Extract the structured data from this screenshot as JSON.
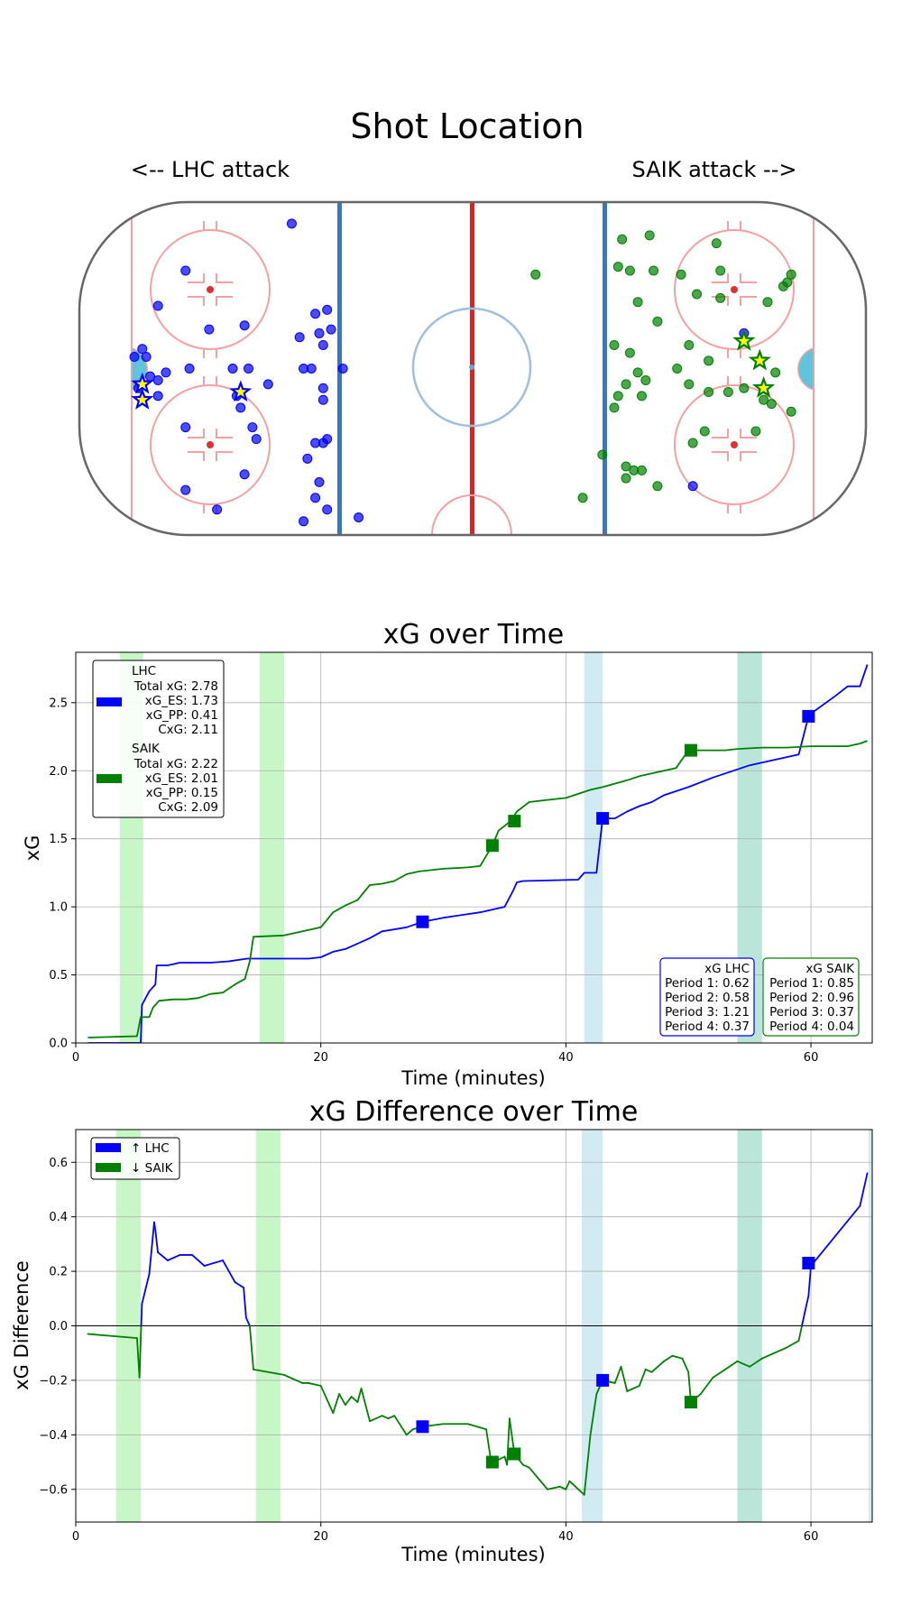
{
  "colors": {
    "lhc": "#0000ff",
    "saik": "#008000",
    "pp_light": "#90ee90",
    "pp_dark": "#add8e6"
  },
  "chart_data": [
    {
      "type": "scatter",
      "title": "Shot Location",
      "left_label": "<-- LHC attack",
      "right_label": "SAIK attack -->",
      "xlim": [
        -100,
        100
      ],
      "ylim": [
        -42.5,
        42.5
      ],
      "series": [
        {
          "name": "LHC shots",
          "color": "blue",
          "points": [
            [
              -46,
              37
            ],
            [
              -73,
              25
            ],
            [
              -80,
              16
            ],
            [
              -67,
              10
            ],
            [
              -58,
              11
            ],
            [
              -84,
              5
            ],
            [
              -86,
              3
            ],
            [
              -83,
              3
            ],
            [
              -78,
              -1
            ],
            [
              -72,
              0
            ],
            [
              -57,
              0
            ],
            [
              -61,
              0
            ],
            [
              -82,
              -2
            ],
            [
              -80,
              -3
            ],
            [
              -85,
              -5
            ],
            [
              -80,
              -7
            ],
            [
              -60,
              -7
            ],
            [
              -59,
              -10
            ],
            [
              -52,
              -4
            ],
            [
              -40,
              14
            ],
            [
              -37,
              15
            ],
            [
              -36,
              10
            ],
            [
              -39,
              9
            ],
            [
              -38,
              6
            ],
            [
              -44,
              8
            ],
            [
              -43,
              0
            ],
            [
              -41,
              0
            ],
            [
              -33,
              0
            ],
            [
              -38,
              -5
            ],
            [
              -38,
              -8
            ],
            [
              -73,
              -15
            ],
            [
              -56,
              -15
            ],
            [
              -55,
              -18
            ],
            [
              -37,
              -18
            ],
            [
              -40,
              -19
            ],
            [
              -38,
              -19
            ],
            [
              -42,
              -23
            ],
            [
              -58,
              -27
            ],
            [
              -39,
              -29
            ],
            [
              -73,
              -31
            ],
            [
              -40,
              -33
            ],
            [
              -65,
              -36
            ],
            [
              -43,
              -39
            ],
            [
              -37,
              -36
            ],
            [
              -29,
              -38
            ],
            [
              56,
              -30
            ],
            [
              69,
              9
            ]
          ]
        },
        {
          "name": "SAIK shots",
          "color": "green",
          "points": [
            [
              16,
              24
            ],
            [
              38,
              33
            ],
            [
              45,
              34
            ],
            [
              62,
              32
            ],
            [
              37,
              26
            ],
            [
              40,
              25
            ],
            [
              46,
              25
            ],
            [
              53,
              24
            ],
            [
              63,
              25
            ],
            [
              81,
              24
            ],
            [
              80,
              22
            ],
            [
              79,
              21
            ],
            [
              42,
              17
            ],
            [
              57,
              19
            ],
            [
              63,
              18
            ],
            [
              75,
              17
            ],
            [
              47,
              12
            ],
            [
              55,
              6
            ],
            [
              52,
              0
            ],
            [
              60,
              2
            ],
            [
              77,
              -1
            ],
            [
              36,
              6
            ],
            [
              40,
              4
            ],
            [
              42,
              -1
            ],
            [
              44,
              -3
            ],
            [
              39,
              -4
            ],
            [
              37,
              -7
            ],
            [
              36,
              -10
            ],
            [
              43,
              -7
            ],
            [
              55,
              -4
            ],
            [
              60,
              -6
            ],
            [
              65,
              -6
            ],
            [
              69,
              -5
            ],
            [
              74,
              -8
            ],
            [
              76,
              -9
            ],
            [
              81,
              -11
            ],
            [
              59,
              -16
            ],
            [
              56,
              -19
            ],
            [
              72,
              -16
            ],
            [
              33,
              -22
            ],
            [
              39,
              -25
            ],
            [
              41,
              -26
            ],
            [
              43,
              -26
            ],
            [
              39,
              -28
            ],
            [
              28,
              -33
            ],
            [
              47,
              -30
            ]
          ]
        },
        {
          "name": "LHC goals",
          "color": "blue",
          "marker": "star",
          "points": [
            [
              -84,
              -4
            ],
            [
              -84,
              -8
            ],
            [
              -59,
              -6
            ]
          ]
        },
        {
          "name": "SAIK goals",
          "color": "green",
          "marker": "star",
          "points": [
            [
              69,
              7
            ],
            [
              73,
              2
            ],
            [
              74,
              -5
            ]
          ]
        }
      ]
    },
    {
      "type": "line",
      "title": "xG over Time",
      "xlabel": "Time (minutes)",
      "ylabel": "xG",
      "xlim": [
        0,
        65
      ],
      "ylim": [
        0,
        2.87
      ],
      "xticks": [
        0,
        20,
        40,
        60
      ],
      "yticks": [
        0.0,
        0.5,
        1.0,
        1.5,
        2.0,
        2.5
      ],
      "xtick_labels": [
        "0",
        "20",
        "40",
        "60"
      ],
      "ytick_labels": [
        "0.0",
        "0.5",
        "1.0",
        "1.5",
        "2.0",
        "2.5"
      ],
      "shaded_light": [
        [
          3.6,
          5.5
        ],
        [
          15.0,
          17.0
        ],
        [
          54.0,
          56.0
        ]
      ],
      "shaded_dark": [
        [
          41.5,
          43.0
        ],
        [
          54.0,
          56.0
        ]
      ],
      "series": [
        {
          "name": "LHC",
          "color": "blue",
          "x": [
            1,
            5.3,
            5.4,
            6,
            6.5,
            6.6,
            7.5,
            8.5,
            10,
            11,
            12.5,
            14,
            15,
            19,
            20,
            21,
            22,
            23,
            24,
            25,
            27,
            28.3,
            30,
            33,
            34.5,
            35,
            35.7,
            36,
            36.5,
            41,
            41.5,
            42,
            42.5,
            43,
            44,
            45,
            46,
            47,
            48,
            50,
            52,
            55,
            58,
            59,
            59.8,
            60,
            62,
            63,
            64,
            64.6
          ],
          "y": [
            0,
            0,
            0.28,
            0.38,
            0.43,
            0.57,
            0.57,
            0.59,
            0.59,
            0.59,
            0.6,
            0.62,
            0.62,
            0.62,
            0.63,
            0.67,
            0.69,
            0.73,
            0.77,
            0.82,
            0.85,
            0.89,
            0.92,
            0.96,
            0.99,
            1.0,
            1.12,
            1.18,
            1.19,
            1.2,
            1.25,
            1.25,
            1.25,
            1.65,
            1.65,
            1.7,
            1.74,
            1.77,
            1.82,
            1.88,
            1.95,
            2.04,
            2.1,
            2.12,
            2.4,
            2.42,
            2.55,
            2.62,
            2.62,
            2.78
          ]
        },
        {
          "name": "SAIK",
          "color": "green",
          "x": [
            1,
            5,
            5.3,
            6,
            6.3,
            6.8,
            8,
            9,
            10,
            11,
            12,
            13,
            13.8,
            14.2,
            14.5,
            17,
            18,
            19.5,
            20,
            21,
            22,
            23,
            24,
            25,
            26,
            27,
            28,
            29,
            30,
            32,
            33,
            34,
            34.5,
            35.5,
            36,
            37,
            38,
            40,
            41,
            42,
            43,
            45,
            46,
            48,
            49,
            50,
            53,
            54,
            56,
            58,
            60,
            62,
            63,
            64,
            64.6
          ],
          "y": [
            0.04,
            0.05,
            0.19,
            0.19,
            0.26,
            0.31,
            0.32,
            0.32,
            0.33,
            0.36,
            0.37,
            0.43,
            0.47,
            0.6,
            0.78,
            0.79,
            0.81,
            0.84,
            0.85,
            0.96,
            1.01,
            1.05,
            1.16,
            1.17,
            1.19,
            1.24,
            1.26,
            1.27,
            1.28,
            1.29,
            1.3,
            1.45,
            1.56,
            1.63,
            1.7,
            1.77,
            1.78,
            1.8,
            1.83,
            1.86,
            1.88,
            1.93,
            1.96,
            2.0,
            2.02,
            2.15,
            2.15,
            2.16,
            2.17,
            2.17,
            2.18,
            2.18,
            2.18,
            2.2,
            2.22
          ]
        }
      ],
      "goal_markers": [
        {
          "team": "LHC",
          "points": [
            [
              28.3,
              0.89
            ],
            [
              43.0,
              1.65
            ],
            [
              59.8,
              2.4
            ]
          ]
        },
        {
          "team": "SAIK",
          "points": [
            [
              34.0,
              1.45
            ],
            [
              35.8,
              1.63
            ],
            [
              50.2,
              2.15
            ]
          ]
        }
      ],
      "legend": {
        "placement": "top-left",
        "lhc": {
          "team": "LHC",
          "lines": [
            "Total xG: 2.78",
            "xG_ES: 1.73",
            "xG_PP: 0.41",
            "CxG: 2.11"
          ]
        },
        "saik": {
          "team": "SAIK",
          "lines": [
            "Total xG: 2.22",
            "xG_ES: 2.01",
            "xG_PP: 0.15",
            "CxG: 2.09"
          ]
        }
      },
      "period_boxes": {
        "lhc": {
          "title": "xG LHC",
          "lines": [
            "Period 1: 0.62",
            "Period 2: 0.58",
            "Period 3: 1.21",
            "Period 4: 0.37"
          ]
        },
        "saik": {
          "title": "xG SAIK",
          "lines": [
            "Period 1: 0.85",
            "Period 2: 0.96",
            "Period 3: 0.37",
            "Period 4: 0.04"
          ]
        }
      }
    },
    {
      "type": "line",
      "title": "xG Difference over Time",
      "xlabel": "Time (minutes)",
      "ylabel": "xG Difference",
      "xlim": [
        0,
        65
      ],
      "ylim": [
        -0.72,
        0.72
      ],
      "xticks": [
        0,
        20,
        40,
        60
      ],
      "yticks": [
        -0.6,
        -0.4,
        -0.2,
        0.0,
        0.2,
        0.4,
        0.6
      ],
      "xtick_labels": [
        "0",
        "20",
        "40",
        "60"
      ],
      "ytick_labels": [
        "−0.6",
        "−0.4",
        "−0.2",
        "0.0",
        "0.2",
        "0.4",
        "0.6"
      ],
      "shaded_light": [
        [
          3.3,
          5.3
        ],
        [
          14.7,
          16.7
        ],
        [
          54.0,
          56.0
        ]
      ],
      "shaded_dark": [
        [
          41.3,
          43.0
        ],
        [
          54.0,
          56.0
        ],
        [
          64.7,
          65.0
        ]
      ],
      "series": [
        {
          "name": "xG difference",
          "x": [
            1,
            5,
            5.2,
            5.4,
            6,
            6.4,
            6.5,
            6.7,
            7.5,
            8.5,
            9.5,
            10.5,
            12,
            13,
            13.7,
            13.9,
            14.2,
            14.5,
            17,
            18,
            18.5,
            19,
            20,
            21,
            21.5,
            22,
            22.5,
            23,
            23.3,
            24,
            25,
            25.5,
            26,
            27,
            27.5,
            28.3,
            30,
            32,
            33.5,
            33.9,
            34.1,
            35,
            35.2,
            35.4,
            35.8,
            36.5,
            37,
            38.5,
            39.5,
            40,
            40.3,
            41.5,
            42,
            42.5,
            43,
            44,
            44.5,
            45,
            46,
            46.5,
            47,
            48,
            48.7,
            49.5,
            50,
            50.2,
            51,
            52,
            53,
            54,
            55,
            56,
            58,
            59,
            59.5,
            59.8,
            60,
            62,
            64,
            64.6
          ],
          "y": [
            -0.03,
            -0.045,
            -0.19,
            0.08,
            0.19,
            0.38,
            0.35,
            0.27,
            0.24,
            0.26,
            0.26,
            0.22,
            0.24,
            0.16,
            0.14,
            0.03,
            0.0,
            -0.16,
            -0.18,
            -0.2,
            -0.21,
            -0.21,
            -0.22,
            -0.32,
            -0.25,
            -0.29,
            -0.26,
            -0.28,
            -0.23,
            -0.35,
            -0.33,
            -0.34,
            -0.33,
            -0.4,
            -0.38,
            -0.37,
            -0.36,
            -0.36,
            -0.38,
            -0.5,
            -0.5,
            -0.48,
            -0.51,
            -0.34,
            -0.47,
            -0.51,
            -0.52,
            -0.6,
            -0.59,
            -0.6,
            -0.57,
            -0.62,
            -0.4,
            -0.25,
            -0.2,
            -0.21,
            -0.15,
            -0.24,
            -0.22,
            -0.16,
            -0.17,
            -0.13,
            -0.11,
            -0.12,
            -0.17,
            -0.28,
            -0.25,
            -0.19,
            -0.16,
            -0.13,
            -0.15,
            -0.12,
            -0.08,
            -0.055,
            0.05,
            0.11,
            0.22,
            0.33,
            0.44,
            0.56
          ],
          "segment_colors_by_sign": {
            "positive": "blue",
            "negative": "green"
          }
        }
      ],
      "goal_markers": [
        {
          "team": "LHC",
          "points": [
            [
              28.3,
              -0.37
            ],
            [
              43.0,
              -0.2
            ],
            [
              59.8,
              0.23
            ]
          ]
        },
        {
          "team": "SAIK",
          "points": [
            [
              34.0,
              -0.5
            ],
            [
              35.8,
              -0.47
            ],
            [
              50.2,
              -0.28
            ]
          ]
        }
      ],
      "legend": {
        "placement": "top-left",
        "entries": [
          "↑ LHC",
          "↓ SAIK"
        ]
      }
    }
  ]
}
